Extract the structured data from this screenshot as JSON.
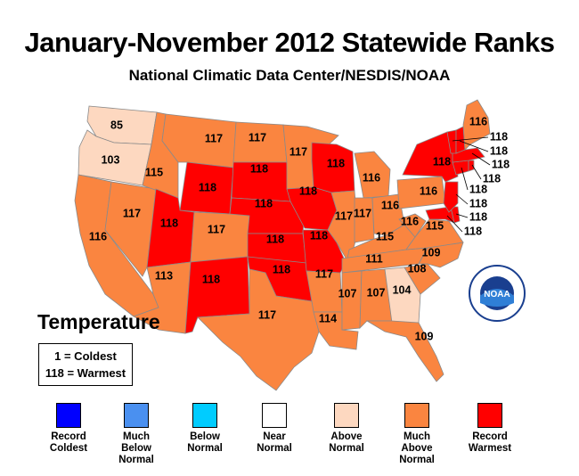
{
  "title": "January-November 2012 Statewide Ranks",
  "subtitle": "National Climatic Data Center/NESDIS/NOAA",
  "panel_title": "Temperature",
  "key": {
    "coldest": "1 = Coldest",
    "warmest": "118 = Warmest"
  },
  "colors": {
    "record_coldest": "#0000ff",
    "much_below": "#4a90f0",
    "below": "#00ccff",
    "near": "#ffffff",
    "above": "#fdd8c0",
    "much_above": "#fa8540",
    "record_warmest": "#ff0000",
    "border": "#8a8a8a"
  },
  "legend": [
    {
      "key": "record_coldest",
      "lines": [
        "Record",
        "Coldest"
      ]
    },
    {
      "key": "much_below",
      "lines": [
        "Much",
        "Below",
        "Normal"
      ]
    },
    {
      "key": "below",
      "lines": [
        "Below",
        "Normal"
      ]
    },
    {
      "key": "near",
      "lines": [
        "Near",
        "Normal"
      ]
    },
    {
      "key": "above",
      "lines": [
        "Above",
        "Normal"
      ]
    },
    {
      "key": "much_above",
      "lines": [
        "Much",
        "Above",
        "Normal"
      ]
    },
    {
      "key": "record_warmest",
      "lines": [
        "Record",
        "Warmest"
      ]
    }
  ],
  "states": [
    {
      "id": "WA",
      "rank": "85",
      "category": "above"
    },
    {
      "id": "OR",
      "rank": "103",
      "category": "above"
    },
    {
      "id": "CA",
      "rank": "116",
      "category": "much_above"
    },
    {
      "id": "ID",
      "rank": "115",
      "category": "much_above"
    },
    {
      "id": "NV",
      "rank": "117",
      "category": "much_above"
    },
    {
      "id": "MT",
      "rank": "117",
      "category": "much_above"
    },
    {
      "id": "WY",
      "rank": "118",
      "category": "record_warmest"
    },
    {
      "id": "UT",
      "rank": "118",
      "category": "record_warmest"
    },
    {
      "id": "AZ",
      "rank": "113",
      "category": "much_above"
    },
    {
      "id": "CO",
      "rank": "117",
      "category": "much_above"
    },
    {
      "id": "NM",
      "rank": "118",
      "category": "record_warmest"
    },
    {
      "id": "ND",
      "rank": "117",
      "category": "much_above"
    },
    {
      "id": "SD",
      "rank": "118",
      "category": "record_warmest"
    },
    {
      "id": "NE",
      "rank": "118",
      "category": "record_warmest"
    },
    {
      "id": "KS",
      "rank": "118",
      "category": "record_warmest"
    },
    {
      "id": "OK",
      "rank": "118",
      "category": "record_warmest"
    },
    {
      "id": "TX",
      "rank": "117",
      "category": "much_above"
    },
    {
      "id": "MN",
      "rank": "117",
      "category": "much_above"
    },
    {
      "id": "IA",
      "rank": "118",
      "category": "record_warmest"
    },
    {
      "id": "MO",
      "rank": "118",
      "category": "record_warmest"
    },
    {
      "id": "AR",
      "rank": "117",
      "category": "much_above"
    },
    {
      "id": "LA",
      "rank": "114",
      "category": "much_above"
    },
    {
      "id": "WI",
      "rank": "118",
      "category": "record_warmest"
    },
    {
      "id": "IL",
      "rank": "117",
      "category": "much_above"
    },
    {
      "id": "MI",
      "rank": "116",
      "category": "much_above"
    },
    {
      "id": "IN",
      "rank": "117",
      "category": "much_above"
    },
    {
      "id": "OH",
      "rank": "116",
      "category": "much_above"
    },
    {
      "id": "KY",
      "rank": "115",
      "category": "much_above"
    },
    {
      "id": "TN",
      "rank": "111",
      "category": "much_above"
    },
    {
      "id": "MS",
      "rank": "107",
      "category": "much_above"
    },
    {
      "id": "AL",
      "rank": "107",
      "category": "much_above"
    },
    {
      "id": "GA",
      "rank": "104",
      "category": "above"
    },
    {
      "id": "FL",
      "rank": "109",
      "category": "much_above"
    },
    {
      "id": "SC",
      "rank": "108",
      "category": "much_above"
    },
    {
      "id": "NC",
      "rank": "109",
      "category": "much_above"
    },
    {
      "id": "VA",
      "rank": "115",
      "category": "much_above"
    },
    {
      "id": "WV",
      "rank": "116",
      "category": "much_above"
    },
    {
      "id": "PA",
      "rank": "116",
      "category": "much_above"
    },
    {
      "id": "NY",
      "rank": "118",
      "category": "record_warmest"
    },
    {
      "id": "ME",
      "rank": "116",
      "category": "much_above"
    },
    {
      "id": "VT",
      "rank": "118",
      "category": "record_warmest"
    },
    {
      "id": "NH",
      "rank": "118",
      "category": "record_warmest"
    },
    {
      "id": "MA",
      "rank": "118",
      "category": "record_warmest"
    },
    {
      "id": "RI",
      "rank": "118",
      "category": "record_warmest"
    },
    {
      "id": "CT",
      "rank": "118",
      "category": "record_warmest"
    },
    {
      "id": "NJ",
      "rank": "118",
      "category": "record_warmest"
    },
    {
      "id": "DE",
      "rank": "118",
      "category": "record_warmest"
    },
    {
      "id": "MD",
      "rank": "118",
      "category": "record_warmest"
    }
  ],
  "logo": {
    "text": "NOAA"
  }
}
